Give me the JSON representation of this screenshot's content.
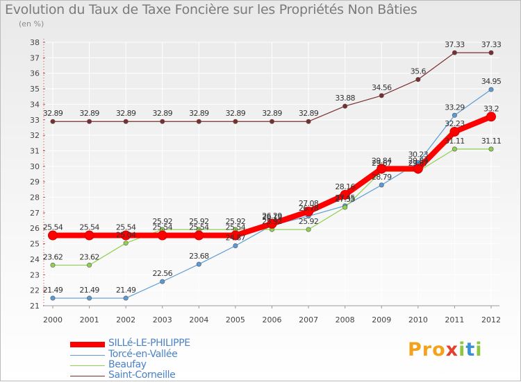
{
  "chart_data": {
    "type": "line",
    "title": "Evolution du Taux de Taxe Foncière sur les Propriétés Non Bâties",
    "subtitle": "(en %)",
    "xlabel": "",
    "ylabel": "",
    "x": [
      "2000",
      "2001",
      "2002",
      "2003",
      "2004",
      "2005",
      "2006",
      "2007",
      "2008",
      "2009",
      "2010",
      "2011",
      "2012"
    ],
    "ylim": [
      21,
      38
    ],
    "yticks": [
      "21",
      "22",
      "23",
      "24",
      "25",
      "26",
      "27",
      "28",
      "29",
      "30",
      "31",
      "32",
      "33",
      "34",
      "35",
      "36",
      "37",
      "38"
    ],
    "grid": true,
    "legend_position": "bottom-left",
    "series": [
      {
        "name": "Saint-Corneille",
        "color": "#7a2e2e",
        "values": [
          32.89,
          32.89,
          32.89,
          32.89,
          32.89,
          32.89,
          32.89,
          32.89,
          33.88,
          34.56,
          35.6,
          37.33,
          37.33
        ],
        "labels": [
          "32.89",
          "32.89",
          "32.89",
          "32.89",
          "32.89",
          "32.89",
          "32.89",
          "32.89",
          "33.88",
          "34.56",
          "35.6",
          "37.33",
          "37.33"
        ]
      },
      {
        "name": "Torcé-en-Vallée",
        "color": "#5a9bd5",
        "values": [
          21.49,
          21.49,
          21.49,
          22.56,
          23.68,
          24.87,
          26.19,
          26.78,
          27.45,
          28.79,
          30.23,
          33.29,
          34.95
        ],
        "labels": [
          "21.49",
          "21.49",
          "21.49",
          "22.56",
          "23.68",
          "24.87",
          "26.19",
          "26.78",
          "27.45",
          "28.79",
          "30.23",
          "33.29",
          "34.95"
        ]
      },
      {
        "name": "Beaufay",
        "color": "#8fd14f",
        "values": [
          23.62,
          23.62,
          25.04,
          25.92,
          25.92,
          25.92,
          25.92,
          25.92,
          27.35,
          29.67,
          29.67,
          31.11,
          31.11
        ],
        "labels": [
          "23.62",
          "23.62",
          "25.04",
          "25.92",
          "25.92",
          "25.92",
          "25.92",
          "25.92",
          "27.35",
          "29.67",
          "29.67",
          "31.11",
          "31.11"
        ]
      },
      {
        "name": "SILLé-LE-PHILIPPE",
        "color": "#ff0000",
        "values": [
          25.54,
          25.54,
          25.54,
          25.54,
          25.54,
          25.54,
          26.29,
          27.08,
          28.16,
          29.84,
          29.84,
          32.23,
          33.2
        ],
        "labels": [
          "25.54",
          "25.54",
          "25.54",
          "25.54",
          "25.54",
          "25.54",
          "26.29",
          "27.08",
          "28.16",
          "29.84",
          "29.84",
          "32.23",
          "33.2"
        ]
      }
    ],
    "legend": [
      "SILLé-LE-PHILIPPE",
      "Torcé-en-Vallée",
      "Beaufay",
      "Saint-Corneille"
    ]
  },
  "legend_items": [
    {
      "label": "SILLé-LE-PHILIPPE",
      "color": "#ff0000"
    },
    {
      "label": "Torcé-en-Vallée",
      "color": "#5a9bd5"
    },
    {
      "label": "Beaufay",
      "color": "#8fd14f"
    },
    {
      "label": "Saint-Corneille",
      "color": "#7a2e2e"
    }
  ],
  "brand": {
    "part1": "Pro",
    "part2": "x",
    "part3": "i",
    "part4": "t",
    "part5": "i"
  }
}
